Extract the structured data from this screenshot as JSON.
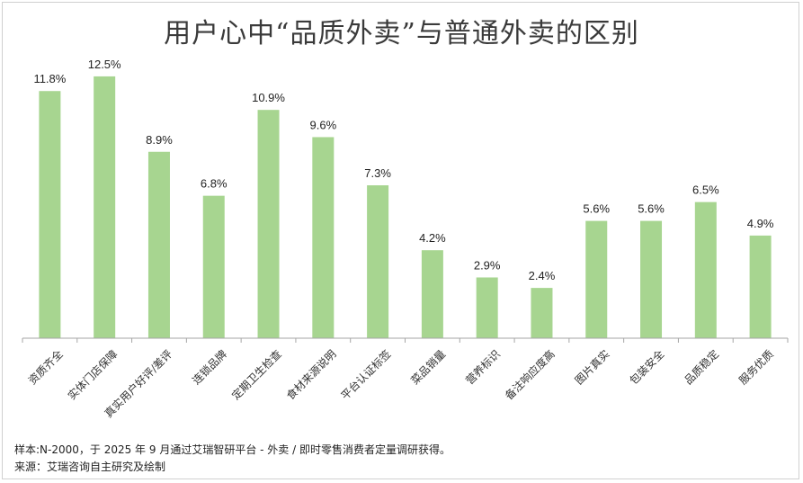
{
  "chart_data": {
    "type": "bar",
    "title": "用户心中“品质外卖”与普通外卖的区别",
    "categories": [
      "资质齐全",
      "实体门店保障",
      "真实用户好评/差评",
      "连锁品牌",
      "定期卫生检查",
      "食材来源说明",
      "平台认证标签",
      "菜品销量",
      "营养标识",
      "备注响应度高",
      "图片真实",
      "包装安全",
      "品质稳定",
      "服务优质"
    ],
    "values": [
      11.8,
      12.5,
      8.9,
      6.8,
      10.9,
      9.6,
      7.3,
      4.2,
      2.9,
      2.4,
      5.6,
      5.6,
      6.5,
      4.9
    ],
    "value_labels": [
      "11.8%",
      "12.5%",
      "8.9%",
      "6.8%",
      "10.9%",
      "9.6%",
      "7.3%",
      "4.2%",
      "2.9%",
      "2.4%",
      "5.6%",
      "5.6%",
      "6.5%",
      "4.9%"
    ],
    "ylim": [
      0,
      14
    ],
    "grid": false,
    "bar_color": "#a7d590",
    "axis_color": "#a6a6a6"
  },
  "footnotes": {
    "sample": "样本:N-2000，于 2025 年 9 月通过艾瑞智研平台 - 外卖 / 即时零售消费者定量调研获得。",
    "source": "来源：艾瑞咨询自主研究及绘制"
  }
}
